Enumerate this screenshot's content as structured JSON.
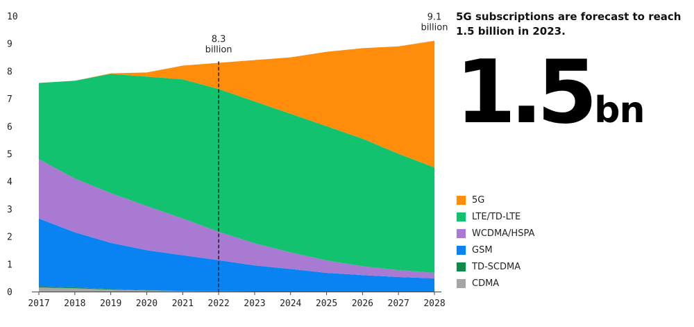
{
  "chart_data": {
    "type": "area",
    "stacked": true,
    "title": "",
    "xlabel": "",
    "ylabel": "",
    "x": [
      "2017",
      "2018",
      "2019",
      "2020",
      "2021",
      "2022",
      "2023",
      "2024",
      "2025",
      "2026",
      "2027",
      "2028"
    ],
    "ylim": [
      0,
      10
    ],
    "yticks": [
      "0",
      "1",
      "2",
      "3",
      "4",
      "5",
      "6",
      "7",
      "8",
      "9",
      "10"
    ],
    "grid": false,
    "legend_position": "right",
    "series": [
      {
        "name": "CDMA",
        "color": "#a6a6a6",
        "values": [
          0.15,
          0.12,
          0.07,
          0.04,
          0.02,
          0.01,
          0,
          0,
          0,
          0,
          0,
          0
        ]
      },
      {
        "name": "TD-SCDMA",
        "color": "#0e8a4a",
        "values": [
          0.05,
          0.03,
          0.02,
          0.01,
          0,
          0,
          0,
          0,
          0,
          0,
          0,
          0
        ]
      },
      {
        "name": "GSM",
        "color": "#0a83f2",
        "values": [
          2.45,
          2.0,
          1.68,
          1.45,
          1.3,
          1.13,
          0.95,
          0.82,
          0.68,
          0.6,
          0.53,
          0.48
        ]
      },
      {
        "name": "WCDMA/HSPA",
        "color": "#a97ad1",
        "values": [
          2.15,
          1.95,
          1.8,
          1.6,
          1.33,
          1.03,
          0.8,
          0.6,
          0.45,
          0.32,
          0.25,
          0.2
        ]
      },
      {
        "name": "LTE/TD-LTE",
        "color": "#12c26e",
        "values": [
          2.77,
          3.55,
          4.33,
          4.7,
          5.05,
          5.18,
          5.15,
          5.03,
          4.87,
          4.63,
          4.22,
          3.82
        ]
      },
      {
        "name": "5G",
        "color": "#ff8c0a",
        "values": [
          0,
          0,
          0.02,
          0.15,
          0.5,
          0.95,
          1.5,
          2.05,
          2.7,
          3.28,
          3.9,
          4.6
        ]
      }
    ],
    "annotations": [
      {
        "x": "2022",
        "line1": "8.3",
        "line2": "billion",
        "dashed_line": true,
        "line_value": 8.3
      },
      {
        "x": "2028",
        "line1": "9.1",
        "line2": "billion",
        "dashed_line": false,
        "line_value": 9.1
      }
    ]
  },
  "headline": "5G subscriptions are forecast to reach 1.5 billion in 2023.",
  "big_number": {
    "value": "1.5",
    "unit": "bn"
  },
  "legend": [
    {
      "label": "5G",
      "color": "#ff8c0a"
    },
    {
      "label": "LTE/TD-LTE",
      "color": "#12c26e"
    },
    {
      "label": "WCDMA/HSPA",
      "color": "#a97ad1"
    },
    {
      "label": "GSM",
      "color": "#0a83f2"
    },
    {
      "label": "TD-SCDMA",
      "color": "#0e8a4a"
    },
    {
      "label": "CDMA",
      "color": "#a6a6a6"
    }
  ]
}
